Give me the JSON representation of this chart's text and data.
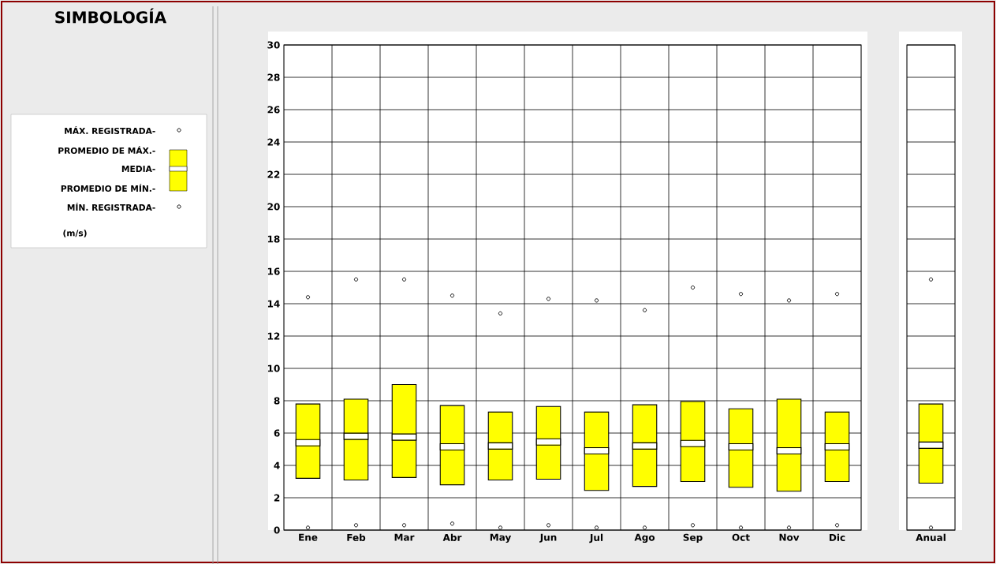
{
  "chart_data": [
    {
      "type": "box",
      "legend_title": "SIMBOLOGÍA",
      "ylabel": "(m/s)",
      "annotations": [
        "MÁX. REGISTRADA-",
        "PROMEDIO DE MÁX.-",
        "MEDIA-",
        "PROMEDIO DE MÍN.-",
        "MÍN. REGISTRADA-"
      ],
      "categories": [
        "Ene",
        "Feb",
        "Mar",
        "Abr",
        "May",
        "Jun",
        "Jul",
        "Ago",
        "Sep",
        "Oct",
        "Nov",
        "Dic"
      ],
      "ylim": [
        0,
        30
      ],
      "yticks": [
        0,
        2,
        4,
        6,
        8,
        10,
        12,
        14,
        16,
        18,
        20,
        22,
        24,
        26,
        28,
        30
      ],
      "grid": true,
      "marker": "circle",
      "series": [
        {
          "color": "#ffff00",
          "boxes": [
            {
              "low": 3.2,
              "q1": 3.2,
              "median": 5.4,
              "q3": 7.8,
              "high": 7.8,
              "outliers": [
                14.4,
                0.15
              ]
            },
            {
              "low": 3.1,
              "q1": 3.1,
              "median": 5.8,
              "q3": 8.1,
              "high": 8.1,
              "outliers": [
                15.5,
                0.3
              ]
            },
            {
              "low": 3.25,
              "q1": 3.25,
              "median": 5.75,
              "q3": 9.0,
              "high": 9.0,
              "outliers": [
                15.5,
                0.3
              ]
            },
            {
              "low": 2.8,
              "q1": 2.8,
              "median": 5.15,
              "q3": 7.7,
              "high": 7.7,
              "outliers": [
                14.5,
                0.4
              ]
            },
            {
              "low": 3.1,
              "q1": 3.1,
              "median": 5.2,
              "q3": 7.3,
              "high": 7.3,
              "outliers": [
                13.4,
                0.15
              ]
            },
            {
              "low": 3.15,
              "q1": 3.15,
              "median": 5.45,
              "q3": 7.65,
              "high": 7.65,
              "outliers": [
                14.3,
                0.3
              ]
            },
            {
              "low": 2.45,
              "q1": 2.45,
              "median": 4.9,
              "q3": 7.3,
              "high": 7.3,
              "outliers": [
                14.2,
                0.15
              ]
            },
            {
              "low": 2.7,
              "q1": 2.7,
              "median": 5.2,
              "q3": 7.75,
              "high": 7.75,
              "outliers": [
                13.6,
                0.15
              ]
            },
            {
              "low": 3.0,
              "q1": 3.0,
              "median": 5.35,
              "q3": 7.95,
              "high": 7.95,
              "outliers": [
                15.0,
                0.3
              ]
            },
            {
              "low": 2.65,
              "q1": 2.65,
              "median": 5.15,
              "q3": 7.5,
              "high": 7.5,
              "outliers": [
                14.6,
                0.15
              ]
            },
            {
              "low": 2.4,
              "q1": 2.4,
              "median": 4.9,
              "q3": 8.1,
              "high": 8.1,
              "outliers": [
                14.2,
                0.15
              ]
            },
            {
              "low": 3.0,
              "q1": 3.0,
              "median": 5.15,
              "q3": 7.3,
              "high": 7.3,
              "outliers": [
                14.6,
                0.3
              ]
            }
          ]
        }
      ]
    },
    {
      "type": "box",
      "categories": [
        "Anual"
      ],
      "ylim": [
        0,
        30
      ],
      "yticks": [
        0,
        2,
        4,
        6,
        8,
        10,
        12,
        14,
        16,
        18,
        20,
        22,
        24,
        26,
        28,
        30
      ],
      "grid": true,
      "marker": "circle",
      "tick_labels": "x",
      "series": [
        {
          "color": "#ffff00",
          "boxes": [
            {
              "low": 2.9,
              "q1": 2.9,
              "median": 5.25,
              "q3": 7.8,
              "high": 7.8,
              "outliers": [
                15.5,
                0.15
              ]
            }
          ]
        }
      ]
    }
  ]
}
